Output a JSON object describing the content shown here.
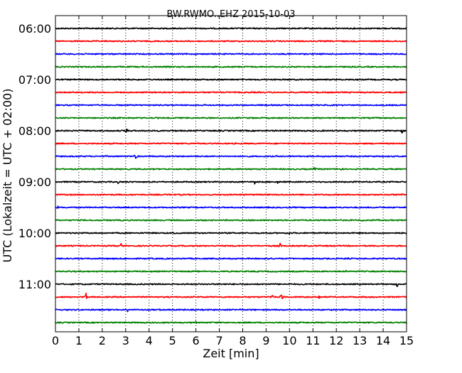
{
  "chart_data": {
    "type": "line",
    "title": "BW.RWMO..EHZ 2015-10-03",
    "xlabel": "Zeit  [min]",
    "ylabel": "UTC (Lokalzeit = UTC + 02:00)",
    "xlim": [
      0,
      15
    ],
    "x_ticks": [
      "0",
      "1",
      "2",
      "3",
      "4",
      "5",
      "6",
      "7",
      "8",
      "9",
      "10",
      "11",
      "12",
      "13",
      "14",
      "15"
    ],
    "y_tick_labels": [
      "06:00",
      "07:00",
      "08:00",
      "09:00",
      "10:00",
      "11:00"
    ],
    "grid": "vertical dotted lines at every minute",
    "trace_colors": [
      "#000000",
      "#ff0000",
      "#0000ff",
      "#008000"
    ],
    "traces": [
      {
        "start": "06:00",
        "events": []
      },
      {
        "start": "06:15",
        "events": [
          {
            "t": 2.2,
            "amp": 2
          }
        ]
      },
      {
        "start": "06:30",
        "events": []
      },
      {
        "start": "06:45",
        "events": []
      },
      {
        "start": "07:00",
        "events": []
      },
      {
        "start": "07:15",
        "events": [
          {
            "t": 7.1,
            "amp": 2
          }
        ]
      },
      {
        "start": "07:30",
        "events": []
      },
      {
        "start": "07:45",
        "events": []
      },
      {
        "start": "08:00",
        "events": [
          {
            "t": 3.05,
            "amp": 6
          },
          {
            "t": 14.8,
            "amp": 6
          }
        ]
      },
      {
        "start": "08:15",
        "events": []
      },
      {
        "start": "08:30",
        "events": [
          {
            "t": 3.45,
            "amp": 7
          }
        ]
      },
      {
        "start": "08:45",
        "events": [
          {
            "t": 11.05,
            "amp": 6
          },
          {
            "t": 12.2,
            "amp": 3
          },
          {
            "t": 8.3,
            "amp": 2
          }
        ]
      },
      {
        "start": "09:00",
        "events": [
          {
            "t": 2.7,
            "amp": 4
          },
          {
            "t": 8.5,
            "amp": 3
          },
          {
            "t": 9.5,
            "amp": 2
          }
        ]
      },
      {
        "start": "09:15",
        "events": [
          {
            "t": 14.8,
            "amp": 5
          },
          {
            "t": 14.3,
            "amp": 2
          }
        ]
      },
      {
        "start": "09:30",
        "events": [
          {
            "t": 0.1,
            "amp": 3
          }
        ]
      },
      {
        "start": "09:45",
        "events": [
          {
            "t": 13.1,
            "amp": 3
          }
        ]
      },
      {
        "start": "10:00",
        "events": [
          {
            "t": 5.1,
            "amp": 2
          },
          {
            "t": 10.0,
            "amp": 2
          }
        ]
      },
      {
        "start": "10:15",
        "events": [
          {
            "t": 2.8,
            "amp": 4
          },
          {
            "t": 9.6,
            "amp": 5
          }
        ]
      },
      {
        "start": "10:30",
        "events": [
          {
            "t": 9.1,
            "amp": 2
          },
          {
            "t": 11.6,
            "amp": 2
          },
          {
            "t": 12.5,
            "amp": 2
          }
        ]
      },
      {
        "start": "10:45",
        "events": [
          {
            "t": 12.4,
            "amp": 2
          },
          {
            "t": 0.6,
            "amp": 2
          }
        ]
      },
      {
        "start": "11:00",
        "events": [
          {
            "t": 14.6,
            "amp": 6
          },
          {
            "t": 7.2,
            "amp": 2
          }
        ]
      },
      {
        "start": "11:15",
        "events": [
          {
            "t": 1.3,
            "amp": 7
          },
          {
            "t": 9.65,
            "amp": 8
          },
          {
            "t": 9.25,
            "amp": 5
          },
          {
            "t": 11.25,
            "amp": 5
          },
          {
            "t": 1.7,
            "amp": 3
          }
        ]
      },
      {
        "start": "11:30",
        "events": [
          {
            "t": 3.1,
            "amp": 4
          },
          {
            "t": 4.4,
            "amp": 2
          },
          {
            "t": 5.5,
            "amp": 2
          },
          {
            "t": 7.9,
            "amp": 2
          },
          {
            "t": 2.3,
            "amp": 2
          }
        ]
      },
      {
        "start": "11:45",
        "events": [
          {
            "t": 4.6,
            "amp": 3
          },
          {
            "t": 6.0,
            "amp": 2
          }
        ]
      }
    ]
  }
}
